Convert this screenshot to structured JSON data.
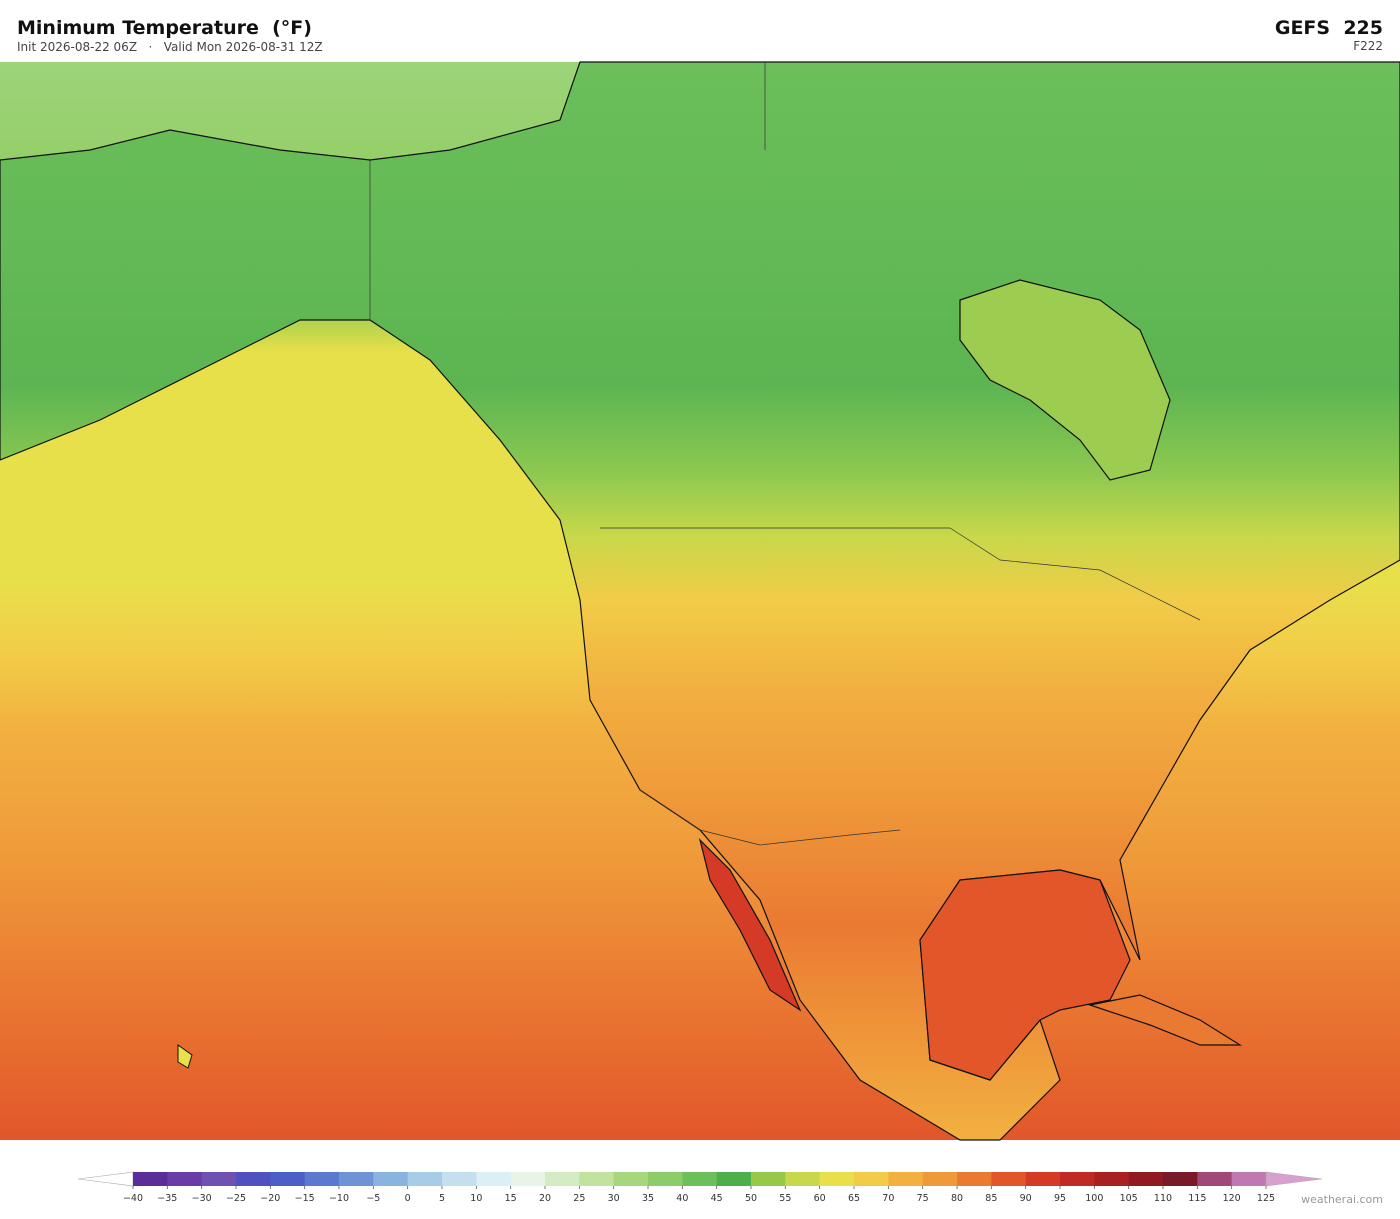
{
  "header": {
    "title": "Minimum Temperature  (°F)",
    "subtitle": "Init 2026-08-22 06Z   ·   Valid Mon 2026-08-31 12Z",
    "model": "GEFS  225",
    "forecast_hour": "F222"
  },
  "colorbar": {
    "ticks": [
      {
        "value": -40,
        "label": "−40"
      },
      {
        "value": -35,
        "label": "−35"
      },
      {
        "value": -30,
        "label": "−30"
      },
      {
        "value": -25,
        "label": "−25"
      },
      {
        "value": -20,
        "label": "−20"
      },
      {
        "value": -15,
        "label": "−15"
      },
      {
        "value": -10,
        "label": "−10"
      },
      {
        "value": -5,
        "label": "−5"
      },
      0,
      5,
      10,
      15,
      20,
      25,
      30,
      35,
      40,
      45,
      50,
      55,
      60,
      65,
      70,
      75,
      80,
      85,
      90,
      95,
      100,
      105,
      110,
      115,
      120,
      125
    ],
    "colors": [
      "#5a2d9a",
      "#6a3ca8",
      "#7050b0",
      "#5050c0",
      "#4a5fc8",
      "#5a7ad0",
      "#6e94d6",
      "#8ab4e0",
      "#a6cce8",
      "#c4e0ef",
      "#dceff4",
      "#e8f4e8",
      "#d4ecc4",
      "#c2e39e",
      "#a6d67e",
      "#8ccc6a",
      "#6cbf5a",
      "#4caf4c",
      "#96c84a",
      "#c8d84a",
      "#e8e04a",
      "#f2cc48",
      "#f2b040",
      "#ef9a3a",
      "#ea7a32",
      "#e2562a",
      "#d43a26",
      "#c02a24",
      "#a82020",
      "#901a20",
      "#7a1a28",
      "#a04878",
      "#c078b0"
    ],
    "under_color": "#ffffff",
    "over_color": "#d8a0d0"
  },
  "credit": "weatherai.com"
}
